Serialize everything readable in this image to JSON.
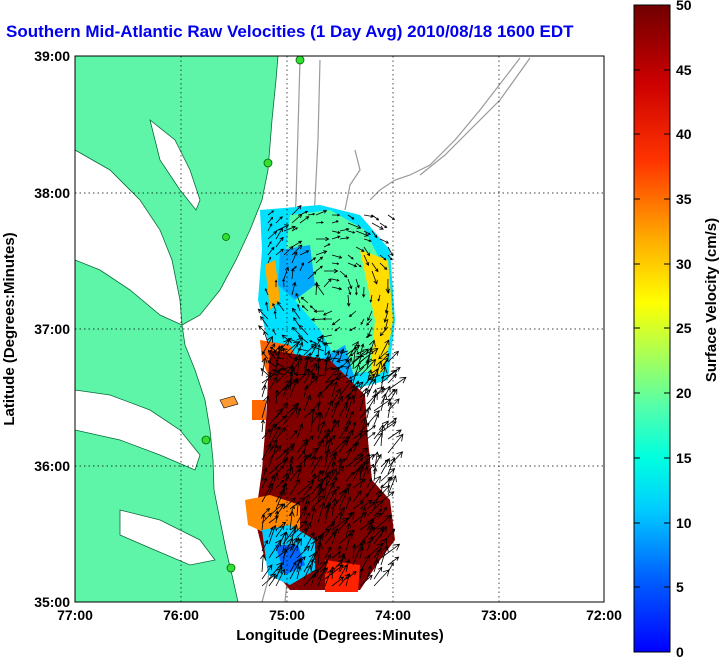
{
  "title": "Southern Mid-Atlantic Raw Velocities (1 Day Avg) 2010/08/18 1600 EDT",
  "map": {
    "xlabel": "Longitude (Degrees:Minutes)",
    "ylabel": "Latitude (Degrees:Minutes)",
    "x_ticks": [
      "77:00",
      "76:00",
      "75:00",
      "74:00",
      "73:00",
      "72:00"
    ],
    "y_ticks": [
      "39:00",
      "38:00",
      "37:00",
      "36:00",
      "35:00"
    ],
    "x_tick_values": [
      -77,
      -76,
      -75,
      -74,
      -73,
      -72
    ],
    "y_tick_values": [
      39,
      38,
      37,
      36,
      35
    ],
    "lon_range": [
      -77,
      -72
    ],
    "lat_range": [
      35,
      39
    ],
    "grid": "dotted",
    "land_color": "#5ef5a8",
    "bathymetry_color": "#999999"
  },
  "colorbar": {
    "label": "Surface Velocity (cm/s)",
    "ticks": [
      "50",
      "45",
      "40",
      "35",
      "30",
      "25",
      "20",
      "15",
      "10",
      "5",
      "0"
    ],
    "range": [
      0,
      50
    ],
    "colormap": [
      "#0000ff",
      "#00aaff",
      "#00ffff",
      "#00ff88",
      "#ffff00",
      "#ff8800",
      "#ff0000",
      "#aa0000",
      "#800000"
    ]
  }
}
